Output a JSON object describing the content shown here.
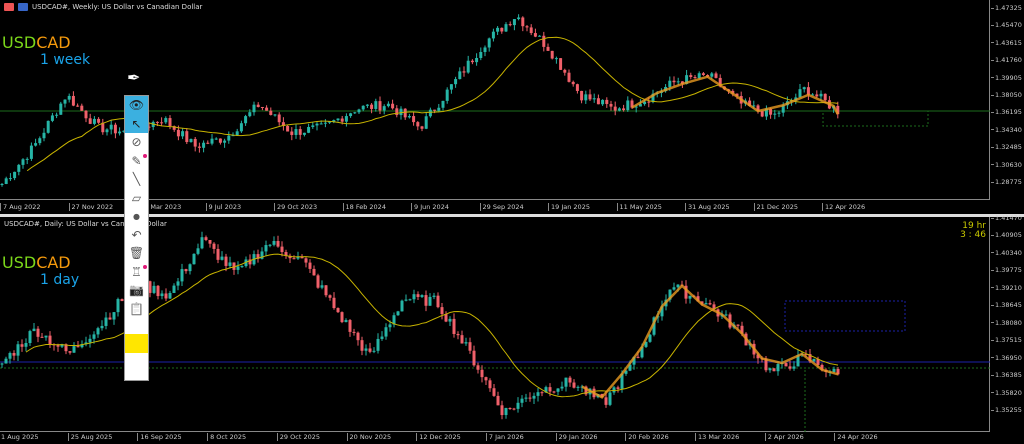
{
  "weekly": {
    "title": "USDCAD#, Weekly:  US Dollar vs Canadian Dollar",
    "symbol_a": "USD",
    "symbol_b": "CAD",
    "timeframe": "1 week",
    "price_ticks": [
      "1.47325",
      "1.45470",
      "1.43615",
      "1.41760",
      "1.39905",
      "1.38050",
      "1.36195",
      "1.34340",
      "1.32485",
      "1.30630",
      "1.28775"
    ],
    "date_ticks": [
      "7 Aug 2022",
      "27 Nov 2022",
      "19 Mar 2023",
      "9 Jul 2023",
      "29 Oct 2023",
      "18 Feb 2024",
      "9 Jun 2024",
      "29 Sep 2024",
      "19 Jan 2025",
      "11 May 2025",
      "31 Aug 2025",
      "21 Dec 2025",
      "12 Apr 2026"
    ],
    "price_keyframes": [
      1.29,
      1.33,
      1.385,
      1.35,
      1.345,
      1.36,
      1.33,
      1.34,
      1.375,
      1.345,
      1.35,
      1.37,
      1.375,
      1.35,
      1.395,
      1.44,
      1.47,
      1.435,
      1.385,
      1.37,
      1.38,
      1.4,
      1.405,
      1.375,
      1.362,
      1.392,
      1.368
    ]
  },
  "daily": {
    "title": "USDCAD#, Daily:  US Dollar vs Canadian Dollar",
    "symbol_a": "USD",
    "symbol_b": "CAD",
    "timeframe": "1 day",
    "timer_hours": "19 hr",
    "timer_time": "3 : 46",
    "price_ticks": [
      "1.41470",
      "1.40905",
      "1.40340",
      "1.39775",
      "1.39210",
      "1.38645",
      "1.38080",
      "1.37515",
      "1.36950",
      "1.36385",
      "1.35820",
      "1.35255"
    ],
    "date_ticks": [
      "1 Aug 2025",
      "25 Aug 2025",
      "16 Sep 2025",
      "8 Oct 2025",
      "29 Oct 2025",
      "20 Nov 2025",
      "12 Dec 2025",
      "7 Jan 2026",
      "29 Jan 2026",
      "20 Feb 2026",
      "13 Mar 2026",
      "2 Apr 2026",
      "24 Apr 2026"
    ],
    "price_keyframes": [
      1.369,
      1.38,
      1.372,
      1.382,
      1.395,
      1.391,
      1.409,
      1.398,
      1.408,
      1.402,
      1.386,
      1.371,
      1.39,
      1.389,
      1.372,
      1.353,
      1.36,
      1.363,
      1.356,
      1.371,
      1.394,
      1.389,
      1.38,
      1.366,
      1.371,
      1.365
    ]
  },
  "toolbar": [
    "eye-icon",
    "cursor-arrow-icon",
    "no-draw-icon",
    "eraser-pencil-icon",
    "line-icon",
    "eraser-icon",
    "dot-icon",
    "undo-icon",
    "trash-icon",
    "robot-icon",
    "camera-icon",
    "clipboard-icon",
    "color-palette-icon"
  ],
  "colors": {
    "bull": "#26b5a6",
    "bear": "#f0606a",
    "ma": "#c8b400",
    "zigzag": "#e89a20",
    "level": "#1d6b1d",
    "blue_level": "#1b22a8"
  }
}
